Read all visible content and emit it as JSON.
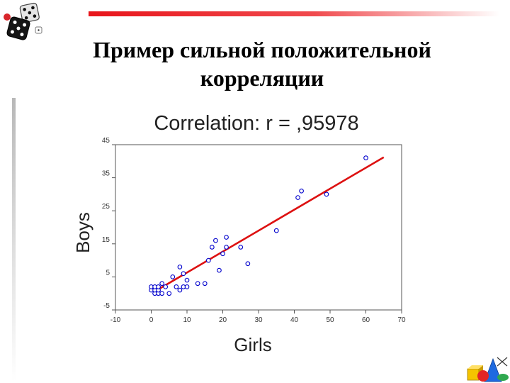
{
  "slide": {
    "title_line1": "Пример сильной положительной",
    "title_line2": "корреляции"
  },
  "decor": {
    "top_bar": "red-fading-bar",
    "left_bar": "gray-fading-bar",
    "corner_top_left": "dice-icon",
    "corner_bottom_right": "geometric-shapes-icon"
  },
  "chart_data": {
    "type": "scatter",
    "title": "Correlation: r = ,95978",
    "xlabel": "Girls",
    "ylabel": "Boys",
    "xlim": [
      -10,
      70
    ],
    "ylim": [
      -5,
      45
    ],
    "xticks": [
      "-10",
      "0",
      "10",
      "20",
      "30",
      "40",
      "50",
      "60",
      "70"
    ],
    "yticks": [
      "45",
      "35",
      "25",
      "15",
      "5",
      "-5"
    ],
    "grid": false,
    "colors": {
      "points": "#0000cc",
      "fit_line": "#dd1111"
    },
    "points": [
      [
        0,
        1
      ],
      [
        0,
        2
      ],
      [
        1,
        0
      ],
      [
        1,
        1
      ],
      [
        1,
        2
      ],
      [
        2,
        0
      ],
      [
        2,
        1
      ],
      [
        2,
        2
      ],
      [
        3,
        0
      ],
      [
        3,
        3
      ],
      [
        4,
        2
      ],
      [
        5,
        0
      ],
      [
        6,
        5
      ],
      [
        7,
        2
      ],
      [
        8,
        1
      ],
      [
        8,
        8
      ],
      [
        9,
        2
      ],
      [
        9,
        6
      ],
      [
        10,
        2
      ],
      [
        10,
        4
      ],
      [
        13,
        3
      ],
      [
        15,
        3
      ],
      [
        16,
        10
      ],
      [
        17,
        14
      ],
      [
        18,
        16
      ],
      [
        19,
        7
      ],
      [
        20,
        12
      ],
      [
        21,
        14
      ],
      [
        21,
        17
      ],
      [
        25,
        14
      ],
      [
        27,
        9
      ],
      [
        35,
        19
      ],
      [
        41,
        29
      ],
      [
        42,
        31
      ],
      [
        49,
        30
      ],
      [
        60,
        41
      ]
    ],
    "fit_line": {
      "x": [
        1,
        65
      ],
      "y": [
        0.6,
        41.2
      ]
    }
  }
}
